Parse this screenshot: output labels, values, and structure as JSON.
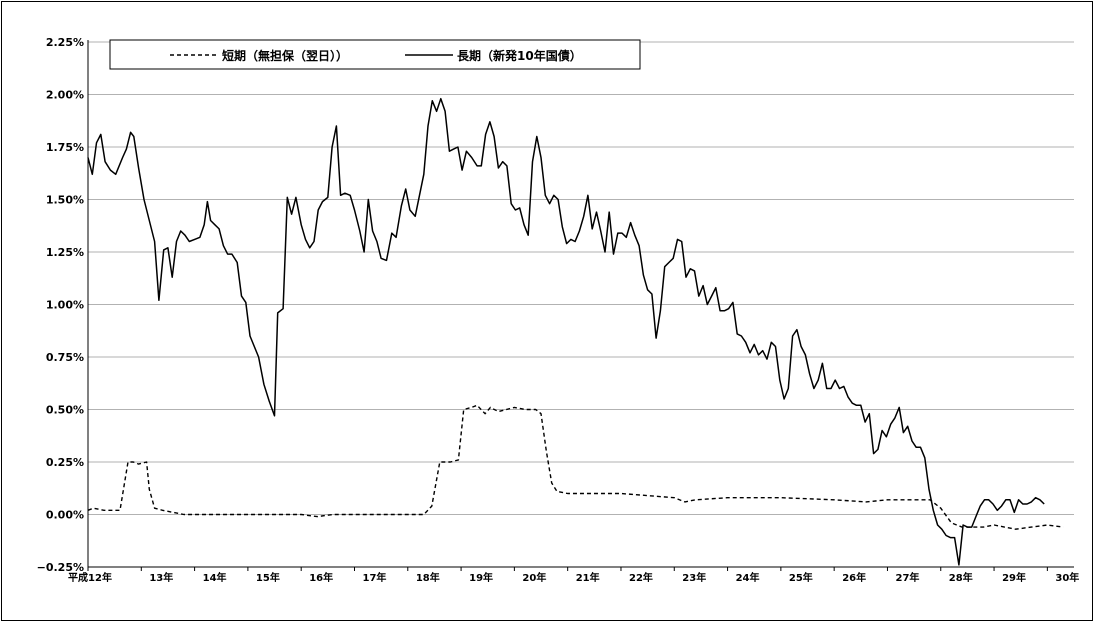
{
  "chart_data": {
    "type": "line",
    "title": "",
    "xlabel": "",
    "ylabel": "",
    "x_range": [
      0,
      18.5
    ],
    "ylim": [
      -0.25,
      2.25
    ],
    "y_ticks": [
      {
        "value": 2.25,
        "label": "2.25%"
      },
      {
        "value": 2.0,
        "label": "2.00%"
      },
      {
        "value": 1.75,
        "label": "1.75%"
      },
      {
        "value": 1.5,
        "label": "1.50%"
      },
      {
        "value": 1.25,
        "label": "1.25%"
      },
      {
        "value": 1.0,
        "label": "1.00%"
      },
      {
        "value": 0.75,
        "label": "0.75%"
      },
      {
        "value": 0.5,
        "label": "0.50%"
      },
      {
        "value": 0.25,
        "label": "0.25%"
      },
      {
        "value": 0.0,
        "label": "0.00%"
      },
      {
        "value": -0.25,
        "label": "−0.25%"
      }
    ],
    "x_ticks": [
      {
        "value": 0,
        "label": "平成12年"
      },
      {
        "value": 1,
        "label": "13年"
      },
      {
        "value": 2,
        "label": "14年"
      },
      {
        "value": 3,
        "label": "15年"
      },
      {
        "value": 4,
        "label": "16年"
      },
      {
        "value": 5,
        "label": "17年"
      },
      {
        "value": 6,
        "label": "18年"
      },
      {
        "value": 7,
        "label": "19年"
      },
      {
        "value": 8,
        "label": "20年"
      },
      {
        "value": 9,
        "label": "21年"
      },
      {
        "value": 10,
        "label": "22年"
      },
      {
        "value": 11,
        "label": "23年"
      },
      {
        "value": 12,
        "label": "24年"
      },
      {
        "value": 13,
        "label": "25年"
      },
      {
        "value": 14,
        "label": "26年"
      },
      {
        "value": 15,
        "label": "27年"
      },
      {
        "value": 16,
        "label": "28年"
      },
      {
        "value": 17,
        "label": "29年"
      },
      {
        "value": 18,
        "label": "30年"
      }
    ],
    "grid": "horizontal",
    "legend_position": "top-left",
    "series": [
      {
        "name": "短期（無担保（翌日））",
        "style": "dashed",
        "color": "#000000",
        "points": [
          [
            0,
            0.02
          ],
          [
            0.1,
            0.03
          ],
          [
            0.3,
            0.02
          ],
          [
            0.6,
            0.02
          ],
          [
            0.75,
            0.25
          ],
          [
            0.85,
            0.25
          ],
          [
            0.95,
            0.24
          ],
          [
            1.1,
            0.25
          ],
          [
            1.15,
            0.12
          ],
          [
            1.25,
            0.03
          ],
          [
            1.4,
            0.02
          ],
          [
            1.6,
            0.01
          ],
          [
            1.8,
            0.0
          ],
          [
            3.0,
            0.0
          ],
          [
            4.0,
            0.0
          ],
          [
            4.3,
            -0.01
          ],
          [
            4.6,
            0.0
          ],
          [
            5.0,
            0.0
          ],
          [
            6.0,
            0.0
          ],
          [
            6.3,
            0.0
          ],
          [
            6.45,
            0.04
          ],
          [
            6.6,
            0.25
          ],
          [
            6.8,
            0.25
          ],
          [
            6.95,
            0.26
          ],
          [
            7.05,
            0.5
          ],
          [
            7.2,
            0.51
          ],
          [
            7.3,
            0.52
          ],
          [
            7.45,
            0.48
          ],
          [
            7.55,
            0.51
          ],
          [
            7.7,
            0.49
          ],
          [
            8.0,
            0.51
          ],
          [
            8.2,
            0.5
          ],
          [
            8.4,
            0.5
          ],
          [
            8.5,
            0.48
          ],
          [
            8.6,
            0.3
          ],
          [
            8.7,
            0.15
          ],
          [
            8.8,
            0.11
          ],
          [
            9.0,
            0.1
          ],
          [
            9.5,
            0.1
          ],
          [
            10.0,
            0.1
          ],
          [
            10.5,
            0.09
          ],
          [
            11.0,
            0.08
          ],
          [
            11.2,
            0.06
          ],
          [
            11.4,
            0.07
          ],
          [
            12.0,
            0.08
          ],
          [
            12.5,
            0.08
          ],
          [
            13.0,
            0.08
          ],
          [
            14.0,
            0.07
          ],
          [
            14.6,
            0.06
          ],
          [
            15.0,
            0.07
          ],
          [
            15.5,
            0.07
          ],
          [
            15.8,
            0.07
          ],
          [
            16.0,
            0.03
          ],
          [
            16.2,
            -0.04
          ],
          [
            16.4,
            -0.06
          ],
          [
            16.8,
            -0.06
          ],
          [
            17.0,
            -0.05
          ],
          [
            17.4,
            -0.07
          ],
          [
            17.7,
            -0.06
          ],
          [
            18.0,
            -0.05
          ],
          [
            18.3,
            -0.06
          ]
        ]
      },
      {
        "name": "長期（新発10年国債）",
        "style": "solid",
        "color": "#000000",
        "points": [
          [
            0,
            1.7
          ],
          [
            0.08,
            1.62
          ],
          [
            0.16,
            1.77
          ],
          [
            0.24,
            1.81
          ],
          [
            0.32,
            1.68
          ],
          [
            0.42,
            1.64
          ],
          [
            0.52,
            1.62
          ],
          [
            0.65,
            1.7
          ],
          [
            0.72,
            1.74
          ],
          [
            0.8,
            1.82
          ],
          [
            0.86,
            1.8
          ],
          [
            0.95,
            1.65
          ],
          [
            1.05,
            1.5
          ],
          [
            1.15,
            1.4
          ],
          [
            1.25,
            1.3
          ],
          [
            1.33,
            1.02
          ],
          [
            1.42,
            1.26
          ],
          [
            1.5,
            1.27
          ],
          [
            1.58,
            1.13
          ],
          [
            1.66,
            1.3
          ],
          [
            1.74,
            1.35
          ],
          [
            1.82,
            1.33
          ],
          [
            1.9,
            1.3
          ],
          [
            2.0,
            1.31
          ],
          [
            2.1,
            1.32
          ],
          [
            2.18,
            1.38
          ],
          [
            2.24,
            1.49
          ],
          [
            2.3,
            1.4
          ],
          [
            2.38,
            1.38
          ],
          [
            2.46,
            1.36
          ],
          [
            2.54,
            1.28
          ],
          [
            2.62,
            1.24
          ],
          [
            2.7,
            1.24
          ],
          [
            2.8,
            1.2
          ],
          [
            2.88,
            1.04
          ],
          [
            2.96,
            1.01
          ],
          [
            3.04,
            0.85
          ],
          [
            3.12,
            0.8
          ],
          [
            3.2,
            0.75
          ],
          [
            3.3,
            0.62
          ],
          [
            3.4,
            0.54
          ],
          [
            3.5,
            0.47
          ],
          [
            3.56,
            0.96
          ],
          [
            3.66,
            0.98
          ],
          [
            3.74,
            1.51
          ],
          [
            3.82,
            1.43
          ],
          [
            3.9,
            1.51
          ],
          [
            4.0,
            1.38
          ],
          [
            4.08,
            1.31
          ],
          [
            4.16,
            1.27
          ],
          [
            4.24,
            1.3
          ],
          [
            4.32,
            1.45
          ],
          [
            4.4,
            1.49
          ],
          [
            4.5,
            1.51
          ],
          [
            4.58,
            1.75
          ],
          [
            4.66,
            1.85
          ],
          [
            4.74,
            1.52
          ],
          [
            4.82,
            1.53
          ],
          [
            4.92,
            1.52
          ],
          [
            5.0,
            1.45
          ],
          [
            5.1,
            1.35
          ],
          [
            5.18,
            1.25
          ],
          [
            5.26,
            1.5
          ],
          [
            5.34,
            1.35
          ],
          [
            5.42,
            1.3
          ],
          [
            5.5,
            1.22
          ],
          [
            5.6,
            1.21
          ],
          [
            5.7,
            1.34
          ],
          [
            5.78,
            1.32
          ],
          [
            5.88,
            1.47
          ],
          [
            5.96,
            1.55
          ],
          [
            6.04,
            1.45
          ],
          [
            6.14,
            1.42
          ],
          [
            6.22,
            1.52
          ],
          [
            6.3,
            1.62
          ],
          [
            6.38,
            1.85
          ],
          [
            6.46,
            1.97
          ],
          [
            6.54,
            1.92
          ],
          [
            6.62,
            1.98
          ],
          [
            6.7,
            1.92
          ],
          [
            6.78,
            1.73
          ],
          [
            6.86,
            1.74
          ],
          [
            6.94,
            1.75
          ],
          [
            7.02,
            1.64
          ],
          [
            7.1,
            1.73
          ],
          [
            7.2,
            1.7
          ],
          [
            7.3,
            1.66
          ],
          [
            7.38,
            1.66
          ],
          [
            7.46,
            1.81
          ],
          [
            7.54,
            1.87
          ],
          [
            7.62,
            1.8
          ],
          [
            7.7,
            1.65
          ],
          [
            7.78,
            1.68
          ],
          [
            7.86,
            1.66
          ],
          [
            7.94,
            1.48
          ],
          [
            8.02,
            1.45
          ],
          [
            8.1,
            1.46
          ],
          [
            8.18,
            1.38
          ],
          [
            8.26,
            1.33
          ],
          [
            8.34,
            1.68
          ],
          [
            8.42,
            1.8
          ],
          [
            8.5,
            1.7
          ],
          [
            8.58,
            1.52
          ],
          [
            8.66,
            1.48
          ],
          [
            8.74,
            1.52
          ],
          [
            8.82,
            1.5
          ],
          [
            8.9,
            1.37
          ],
          [
            8.98,
            1.29
          ],
          [
            9.06,
            1.31
          ],
          [
            9.14,
            1.3
          ],
          [
            9.22,
            1.35
          ],
          [
            9.3,
            1.42
          ],
          [
            9.38,
            1.52
          ],
          [
            9.46,
            1.36
          ],
          [
            9.54,
            1.44
          ],
          [
            9.62,
            1.35
          ],
          [
            9.7,
            1.25
          ],
          [
            9.78,
            1.44
          ],
          [
            9.86,
            1.24
          ],
          [
            9.94,
            1.34
          ],
          [
            10.02,
            1.34
          ],
          [
            10.1,
            1.32
          ],
          [
            10.18,
            1.39
          ],
          [
            10.26,
            1.33
          ],
          [
            10.34,
            1.28
          ],
          [
            10.42,
            1.14
          ],
          [
            10.5,
            1.07
          ],
          [
            10.58,
            1.05
          ],
          [
            10.66,
            0.84
          ],
          [
            10.74,
            0.97
          ],
          [
            10.82,
            1.18
          ],
          [
            10.9,
            1.2
          ],
          [
            10.98,
            1.22
          ],
          [
            11.06,
            1.31
          ],
          [
            11.14,
            1.3
          ],
          [
            11.22,
            1.13
          ],
          [
            11.3,
            1.17
          ],
          [
            11.38,
            1.16
          ],
          [
            11.46,
            1.04
          ],
          [
            11.54,
            1.09
          ],
          [
            11.62,
            1.0
          ],
          [
            11.7,
            1.04
          ],
          [
            11.78,
            1.08
          ],
          [
            11.86,
            0.97
          ],
          [
            11.94,
            0.97
          ],
          [
            12.02,
            0.98
          ],
          [
            12.1,
            1.01
          ],
          [
            12.18,
            0.86
          ],
          [
            12.26,
            0.85
          ],
          [
            12.34,
            0.82
          ],
          [
            12.42,
            0.77
          ],
          [
            12.5,
            0.81
          ],
          [
            12.58,
            0.76
          ],
          [
            12.66,
            0.78
          ],
          [
            12.74,
            0.74
          ],
          [
            12.82,
            0.82
          ],
          [
            12.9,
            0.8
          ],
          [
            12.98,
            0.64
          ],
          [
            13.06,
            0.55
          ],
          [
            13.14,
            0.6
          ],
          [
            13.22,
            0.85
          ],
          [
            13.3,
            0.88
          ],
          [
            13.38,
            0.8
          ],
          [
            13.46,
            0.76
          ],
          [
            13.54,
            0.67
          ],
          [
            13.62,
            0.6
          ],
          [
            13.7,
            0.64
          ],
          [
            13.78,
            0.72
          ],
          [
            13.86,
            0.6
          ],
          [
            13.94,
            0.6
          ],
          [
            14.02,
            0.64
          ],
          [
            14.1,
            0.6
          ],
          [
            14.18,
            0.61
          ],
          [
            14.26,
            0.56
          ],
          [
            14.34,
            0.53
          ],
          [
            14.42,
            0.52
          ],
          [
            14.5,
            0.52
          ],
          [
            14.58,
            0.44
          ],
          [
            14.66,
            0.48
          ],
          [
            14.74,
            0.29
          ],
          [
            14.82,
            0.31
          ],
          [
            14.9,
            0.4
          ],
          [
            14.98,
            0.37
          ],
          [
            15.06,
            0.43
          ],
          [
            15.14,
            0.46
          ],
          [
            15.22,
            0.51
          ],
          [
            15.3,
            0.39
          ],
          [
            15.38,
            0.42
          ],
          [
            15.46,
            0.35
          ],
          [
            15.54,
            0.32
          ],
          [
            15.62,
            0.32
          ],
          [
            15.7,
            0.27
          ],
          [
            15.78,
            0.12
          ],
          [
            15.86,
            0.02
          ],
          [
            15.94,
            -0.05
          ],
          [
            16.02,
            -0.07
          ],
          [
            16.1,
            -0.1
          ],
          [
            16.18,
            -0.11
          ],
          [
            16.26,
            -0.11
          ],
          [
            16.34,
            -0.24
          ],
          [
            16.42,
            -0.05
          ],
          [
            16.5,
            -0.06
          ],
          [
            16.58,
            -0.06
          ],
          [
            16.66,
            -0.01
          ],
          [
            16.74,
            0.04
          ],
          [
            16.82,
            0.07
          ],
          [
            16.9,
            0.07
          ],
          [
            16.98,
            0.05
          ],
          [
            17.06,
            0.02
          ],
          [
            17.14,
            0.04
          ],
          [
            17.22,
            0.07
          ],
          [
            17.3,
            0.07
          ],
          [
            17.38,
            0.01
          ],
          [
            17.46,
            0.07
          ],
          [
            17.54,
            0.05
          ],
          [
            17.62,
            0.05
          ],
          [
            17.7,
            0.06
          ],
          [
            17.78,
            0.08
          ],
          [
            17.86,
            0.07
          ],
          [
            17.94,
            0.05
          ]
        ]
      }
    ]
  }
}
